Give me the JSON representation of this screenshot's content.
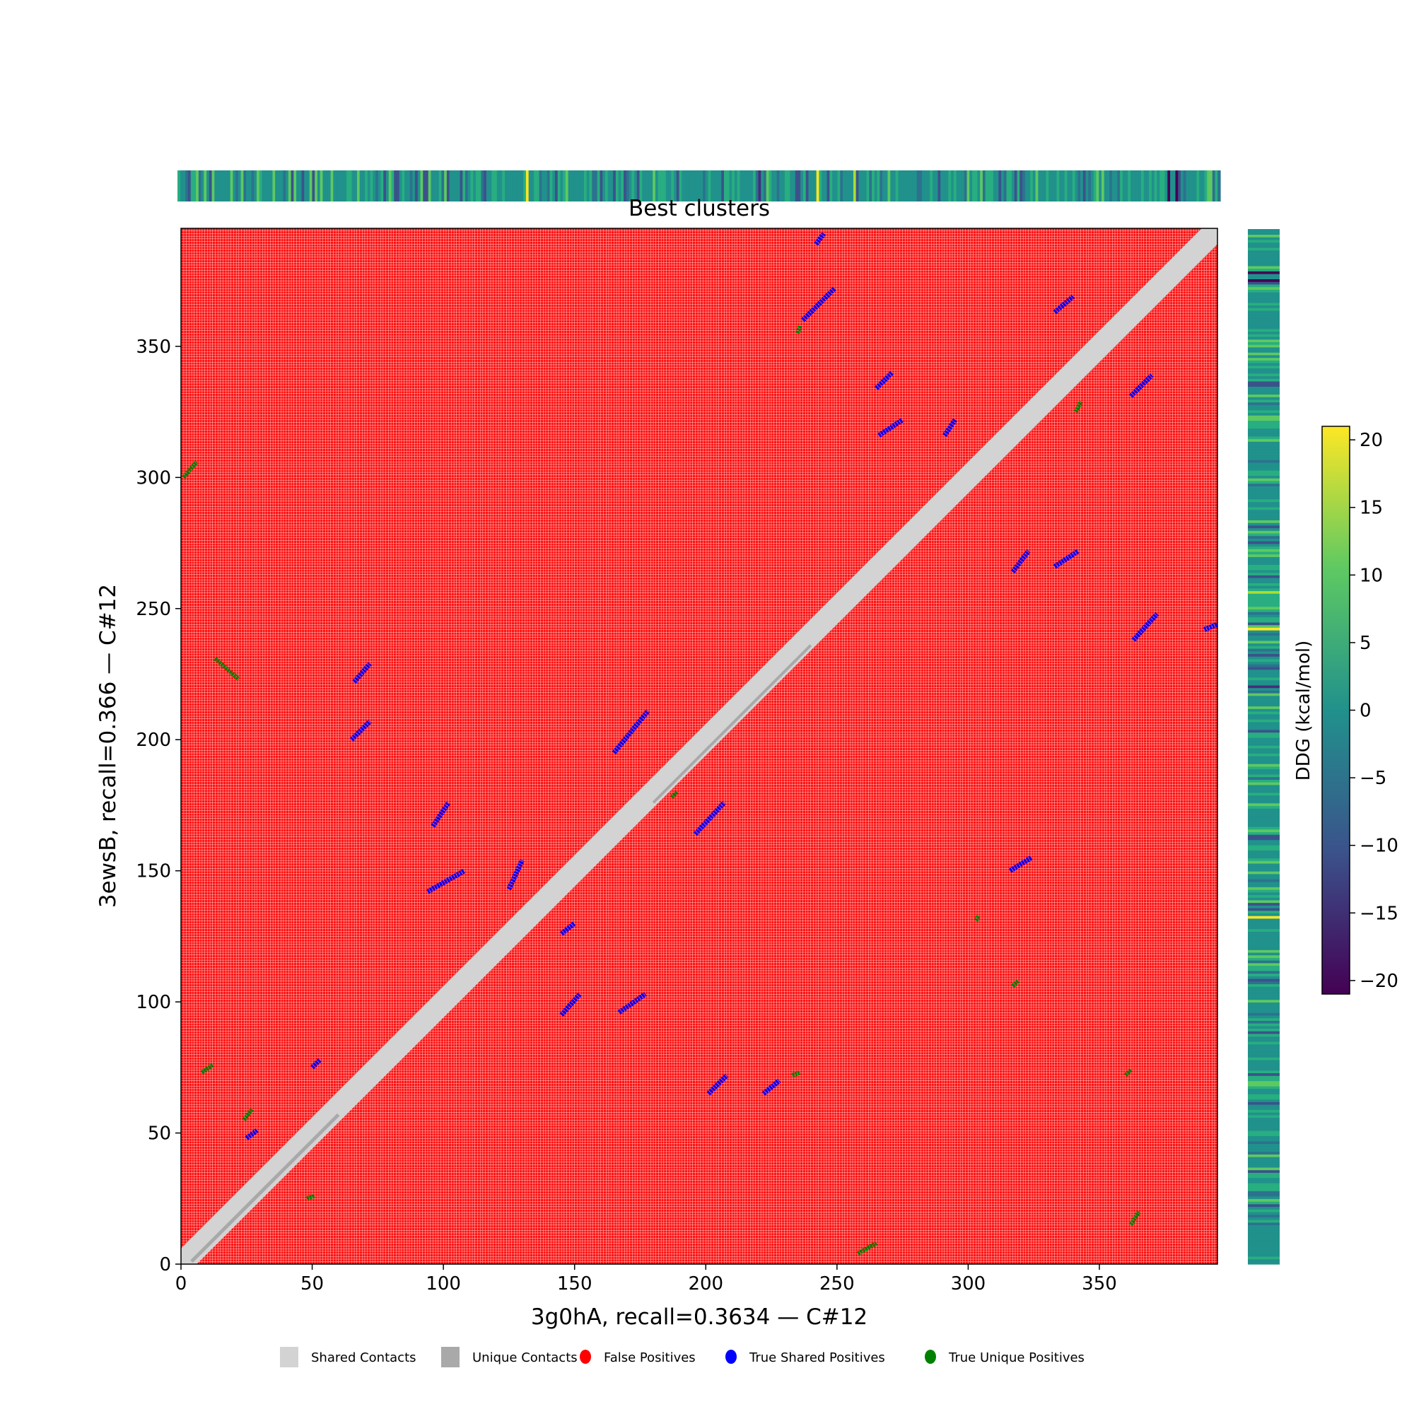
{
  "chart_data": {
    "type": "heatmap",
    "title": "Best clusters",
    "xlabel": "3g0hA, recall=0.3634 — C#12",
    "ylabel": "3ewsB, recall=0.366 — C#12",
    "xlim": [
      0,
      395
    ],
    "ylim": [
      0,
      395
    ],
    "xticks": [
      "0",
      "50",
      "100",
      "150",
      "200",
      "250",
      "300",
      "350"
    ],
    "yticks": [
      "0",
      "50",
      "100",
      "150",
      "200",
      "250",
      "300",
      "350"
    ],
    "colorbar": {
      "label": "DDG (kcal/mol)",
      "range": [
        -21,
        21
      ],
      "ticks": [
        "20",
        "15",
        "10",
        "5",
        "0",
        "−5",
        "−10",
        "−15",
        "−20"
      ],
      "cmap": "viridis"
    },
    "legend": [
      {
        "label": "Shared Contacts",
        "color": "#d3d3d3",
        "marker": "square"
      },
      {
        "label": "Unique Contacts",
        "color": "#a9a9a9",
        "marker": "square"
      },
      {
        "label": "False Positives",
        "color": "#ff0000",
        "marker": "circle"
      },
      {
        "label": "True Shared Positives",
        "color": "#0000ff",
        "marker": "circle"
      },
      {
        "label": "True Unique Positives",
        "color": "#008000",
        "marker": "circle"
      }
    ],
    "diagonal_band_width": 6,
    "ddg_highlights": [
      {
        "residue": 132,
        "ddg": 20
      },
      {
        "residue": 242,
        "ddg": 21
      },
      {
        "residue": 256,
        "ddg": 16
      },
      {
        "residue": 375,
        "ddg": -19
      },
      {
        "residue": 378,
        "ddg": -20
      },
      {
        "residue": 220,
        "ddg": -15
      }
    ],
    "true_shared_segments": [
      [
        65,
        200,
        72,
        207
      ],
      [
        66,
        222,
        72,
        229
      ],
      [
        96,
        167,
        102,
        176
      ],
      [
        94,
        142,
        108,
        150
      ],
      [
        125,
        143,
        130,
        154
      ],
      [
        145,
        95,
        152,
        103
      ],
      [
        145,
        126,
        150,
        130
      ],
      [
        167,
        96,
        177,
        103
      ],
      [
        165,
        195,
        178,
        211
      ],
      [
        196,
        164,
        207,
        176
      ],
      [
        201,
        65,
        208,
        72
      ],
      [
        222,
        65,
        228,
        70
      ],
      [
        242,
        389,
        245,
        393
      ],
      [
        237,
        360,
        249,
        372
      ],
      [
        265,
        334,
        271,
        340
      ],
      [
        266,
        316,
        275,
        322
      ],
      [
        291,
        316,
        295,
        322
      ],
      [
        316,
        150,
        324,
        155
      ],
      [
        317,
        264,
        323,
        272
      ],
      [
        333,
        266,
        342,
        272
      ],
      [
        333,
        363,
        340,
        369
      ],
      [
        363,
        238,
        372,
        248
      ],
      [
        362,
        331,
        370,
        339
      ],
      [
        390,
        242,
        395,
        244
      ],
      [
        50,
        75,
        53,
        78
      ],
      [
        25,
        48,
        29,
        51
      ]
    ],
    "true_unique_segments": [
      [
        13,
        231,
        22,
        223
      ],
      [
        8,
        73,
        12,
        76
      ],
      [
        24,
        55,
        27,
        59
      ],
      [
        48,
        25,
        51,
        26
      ],
      [
        1,
        300,
        6,
        306
      ],
      [
        233,
        72,
        236,
        73
      ],
      [
        258,
        4,
        265,
        8
      ],
      [
        362,
        15,
        365,
        20
      ],
      [
        341,
        325,
        343,
        329
      ],
      [
        360,
        72,
        362,
        74
      ],
      [
        303,
        131,
        304,
        133
      ],
      [
        317,
        106,
        319,
        108
      ],
      [
        235,
        355,
        236,
        358
      ],
      [
        187,
        178,
        189,
        180
      ]
    ]
  }
}
